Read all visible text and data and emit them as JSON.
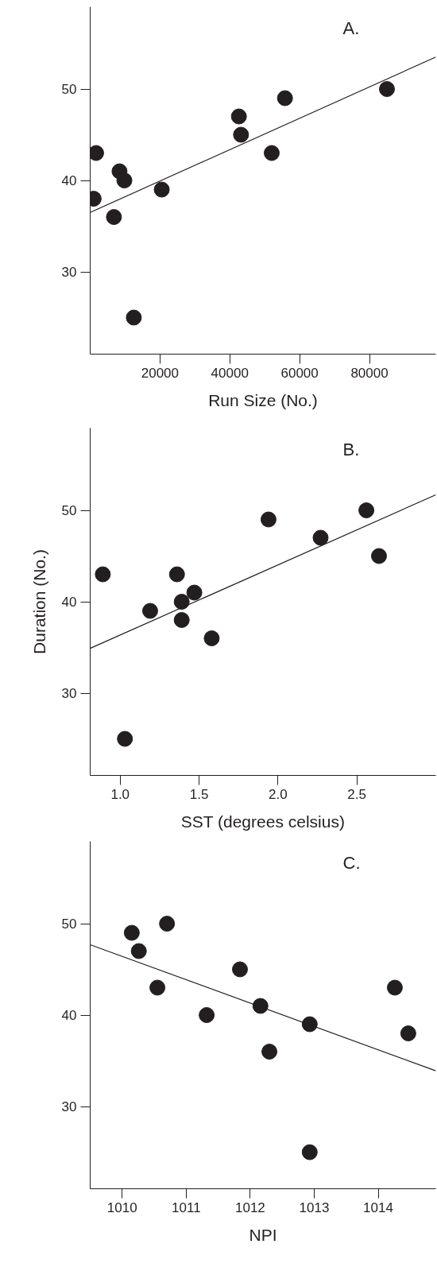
{
  "chart_data": [
    {
      "type": "scatter",
      "xlabel": "Run Size (No.)",
      "annotations": [
        "A."
      ],
      "xlim": [
        0,
        99000
      ],
      "ylim": [
        21,
        59
      ],
      "xticks": [
        20000,
        40000,
        60000,
        80000
      ],
      "yticks": [
        30,
        40,
        50
      ],
      "grid": false,
      "series": [
        {
          "color": "#231f20",
          "marker": "circle",
          "x": [
            1700,
            1000,
            6800,
            8400,
            9800,
            12500,
            20500,
            42600,
            43200,
            52000,
            55800,
            85000
          ],
          "values": [
            43,
            38,
            36,
            41,
            40,
            25,
            39,
            47,
            45,
            43,
            49,
            50
          ]
        },
        {
          "type": "line",
          "color": "#231f20",
          "line_style": "solid",
          "x": [
            0,
            99000
          ],
          "values": [
            36.5,
            53.5
          ]
        }
      ]
    },
    {
      "type": "scatter",
      "xlabel": "SST (degrees celsius)",
      "ylabel": "Duration (No.)",
      "annotations": [
        "B."
      ],
      "xlim": [
        0.81,
        3.0
      ],
      "ylim": [
        21,
        59
      ],
      "xticks": [
        {
          "value": 1.0,
          "label": "1.0"
        },
        1.5,
        {
          "value": 2.0,
          "label": "2.0"
        },
        2.5
      ],
      "yticks": [
        30,
        40,
        50
      ],
      "grid": false,
      "series": [
        {
          "color": "#231f20",
          "marker": "circle",
          "x": [
            0.89,
            1.03,
            1.19,
            1.36,
            1.39,
            1.39,
            1.47,
            1.58,
            1.94,
            2.27,
            2.56,
            2.64
          ],
          "values": [
            43,
            25,
            39,
            43,
            40,
            38,
            41,
            36,
            49,
            47,
            50,
            45
          ]
        },
        {
          "type": "line",
          "color": "#231f20",
          "line_style": "solid",
          "x": [
            0.81,
            3.0
          ],
          "values": [
            34.9,
            51.7
          ]
        }
      ]
    },
    {
      "type": "scatter",
      "xlabel": "NPI",
      "annotations": [
        "C."
      ],
      "xlim": [
        1009.5,
        1014.9
      ],
      "ylim": [
        21,
        59
      ],
      "xticks": [
        1010,
        1011,
        1012,
        1013,
        1014
      ],
      "yticks": [
        30,
        40,
        50
      ],
      "grid": false,
      "series": [
        {
          "color": "#231f20",
          "marker": "circle",
          "x": [
            1010.15,
            1010.26,
            1010.55,
            1010.7,
            1011.32,
            1011.84,
            1012.16,
            1012.3,
            1012.93,
            1012.93,
            1014.26,
            1014.47
          ],
          "values": [
            49,
            47,
            43,
            50,
            40,
            45,
            41,
            36,
            39,
            25,
            43,
            38
          ]
        },
        {
          "type": "line",
          "color": "#231f20",
          "line_style": "solid",
          "x": [
            1009.5,
            1014.9
          ],
          "values": [
            47.7,
            33.9
          ]
        }
      ]
    }
  ]
}
